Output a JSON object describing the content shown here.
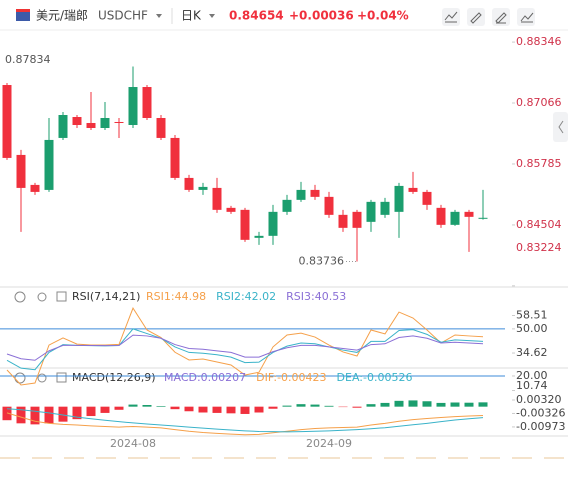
{
  "header": {
    "name": "美元/瑞郎",
    "code": "USDCHF",
    "period": "日K",
    "price": "0.84654",
    "change": "+0.00036",
    "change_pct": "+0.04%"
  },
  "chart_data": [
    {
      "type": "candlestick",
      "categories": [
        null,
        null,
        null,
        null,
        null,
        null,
        null,
        null,
        null,
        "2024-08",
        null,
        null,
        null,
        null,
        null,
        null,
        null,
        null,
        null,
        null,
        null,
        null,
        null,
        "2024-09",
        null,
        null,
        null,
        null,
        null,
        null,
        null,
        null,
        null,
        null,
        null
      ],
      "open": [
        0.87444,
        0.85975,
        0.85345,
        0.8524,
        0.86332,
        0.86772,
        0.86646,
        0.86541,
        0.86667,
        0.86604,
        0.87402,
        0.86751,
        0.86332,
        0.85492,
        0.8524,
        0.85282,
        0.84863,
        0.84821,
        0.84233,
        0.84275,
        0.84779,
        0.85031,
        0.8524,
        0.85094,
        0.84716,
        0.84779,
        0.84569,
        0.84716,
        0.84779,
        0.85282,
        0.85198,
        0.84863,
        0.84506,
        0.84779,
        0.84635
      ],
      "close": [
        0.85912,
        0.85282,
        0.85198,
        0.8629,
        0.86814,
        0.86604,
        0.86541,
        0.86751,
        0.86646,
        0.87402,
        0.86751,
        0.86332,
        0.85492,
        0.8524,
        0.85303,
        0.84821,
        0.84779,
        0.84191,
        0.84275,
        0.84779,
        0.85031,
        0.8524,
        0.85094,
        0.84716,
        0.84443,
        0.84443,
        0.84989,
        0.84989,
        0.85324,
        0.85198,
        0.84926,
        0.84506,
        0.84779,
        0.84674,
        0.84654
      ],
      "high": [
        0.87486,
        0.8608,
        0.85387,
        0.86751,
        0.86877,
        0.86814,
        0.87297,
        0.87087,
        0.86751,
        0.87834,
        0.87444,
        0.86814,
        0.86395,
        0.85555,
        0.85387,
        0.85492,
        0.84905,
        0.84863,
        0.84359,
        0.84926,
        0.85135,
        0.85408,
        0.85345,
        0.85198,
        0.84821,
        0.84821,
        0.85031,
        0.85073,
        0.85387,
        0.85618,
        0.8524,
        0.84926,
        0.84821,
        0.84821,
        0.8524
      ],
      "low": [
        0.8587,
        0.84359,
        0.85135,
        0.85198,
        0.8629,
        0.86541,
        0.86499,
        0.86499,
        0.86332,
        0.86541,
        0.86709,
        0.8629,
        0.8545,
        0.85198,
        0.85135,
        0.84758,
        0.84737,
        0.84149,
        0.84086,
        0.84086,
        0.84716,
        0.84989,
        0.85031,
        0.84653,
        0.84359,
        0.83736,
        0.84359,
        0.84653,
        0.84233,
        0.85156,
        0.84821,
        0.84443,
        0.84485,
        0.83939,
        0.84615
      ],
      "up_color": "#1b9e6e",
      "down_color": "#f0303d",
      "ylim": [
        0.832,
        0.886
      ],
      "yticks": [
        0.88346,
        0.87066,
        0.85785,
        0.84504,
        0.83224
      ],
      "annotations": [
        {
          "text": "0.87834"
        },
        {
          "text": "0.83736"
        }
      ]
    },
    {
      "type": "line",
      "title": "RSI(7,14,21)",
      "ylim": [
        9.8,
        65.2
      ],
      "yticks": [
        58.51,
        {
          "value": 50,
          "label": "50.00"
        },
        34.62,
        {
          "value": 20,
          "label": "20.00"
        },
        10.74
      ],
      "hlines": [
        50,
        20
      ],
      "hline_color": "#3d8bd9",
      "series": [
        {
          "name": "RSI1:44.98",
          "color": "#f5a04a",
          "values": [
            23.8,
            14.3,
            15.5,
            39.7,
            44.2,
            40.3,
            39.7,
            39.7,
            40.1,
            63.2,
            49.3,
            44.5,
            35.1,
            30.2,
            30.8,
            28.9,
            27.0,
            20.6,
            22.4,
            38.5,
            46.1,
            47.3,
            44.8,
            39.7,
            35.3,
            32.7,
            49.3,
            46.8,
            60.7,
            56.9,
            49.3,
            41.0,
            46.1,
            45.5,
            44.98
          ]
        },
        {
          "name": "RSI2:42.02",
          "color": "#3ab3c9",
          "values": [
            30.0,
            25.0,
            24.0,
            35.0,
            40.0,
            39.5,
            39.3,
            39.2,
            39.4,
            50.0,
            47.0,
            44.0,
            38.5,
            35.0,
            34.5,
            33.5,
            32.0,
            28.5,
            28.8,
            35.0,
            39.0,
            41.0,
            40.5,
            38.5,
            36.5,
            35.0,
            42.0,
            42.0,
            49.0,
            49.5,
            46.5,
            41.5,
            43.0,
            42.5,
            42.02
          ]
        },
        {
          "name": "RSI3:40.53",
          "color": "#8a6fd6",
          "values": [
            34.0,
            31.0,
            30.0,
            36.0,
            39.5,
            39.5,
            39.4,
            39.3,
            39.4,
            46.0,
            45.5,
            44.0,
            40.0,
            37.5,
            37.0,
            36.0,
            35.0,
            32.0,
            32.0,
            35.5,
            38.0,
            39.5,
            39.5,
            38.5,
            37.5,
            36.5,
            40.0,
            40.5,
            44.5,
            45.5,
            44.0,
            41.0,
            41.5,
            41.0,
            40.53
          ]
        }
      ]
    },
    {
      "type": "bar",
      "title": "MACD(12,26,9)",
      "ylim": [
        -0.016,
        0.008
      ],
      "yticks": [
        {
          "value": 0.0032,
          "label": "0.00320"
        },
        -0.00326,
        -0.00973
      ],
      "up_color": "#1b9e6e",
      "down_color": "#f0303d",
      "series": [
        {
          "name": "MACD:0.00207",
          "type": "bar",
          "color": "#8a6fd6",
          "values": [
            -0.0065,
            -0.008,
            -0.0085,
            -0.008,
            -0.0072,
            -0.006,
            -0.0045,
            -0.003,
            -0.0015,
            0.001,
            0.0008,
            0.0003,
            -0.0012,
            -0.0022,
            -0.0028,
            -0.003,
            -0.0032,
            -0.0035,
            -0.0028,
            -0.001,
            0.0005,
            0.0012,
            0.001,
            0.0004,
            -0.0002,
            -0.0005,
            0.0012,
            0.0018,
            0.0028,
            0.003,
            0.0026,
            0.0018,
            0.002,
            0.0019,
            0.00207
          ]
        },
        {
          "name": "DIF:-0.00423",
          "type": "line",
          "color": "#f5a04a",
          "values": [
            -0.003,
            -0.005,
            -0.007,
            -0.008,
            -0.0085,
            -0.0088,
            -0.0092,
            -0.0095,
            -0.0098,
            -0.0095,
            -0.0098,
            -0.0102,
            -0.011,
            -0.0118,
            -0.0124,
            -0.0128,
            -0.0132,
            -0.0135,
            -0.0133,
            -0.0125,
            -0.0118,
            -0.011,
            -0.0105,
            -0.0102,
            -0.01,
            -0.0098,
            -0.0088,
            -0.008,
            -0.007,
            -0.0062,
            -0.0057,
            -0.0052,
            -0.0048,
            -0.0045,
            -0.00423
          ]
        },
        {
          "name": "DEA:-0.00526",
          "type": "line",
          "color": "#3ab3c9",
          "values": [
            -0.001,
            -0.0015,
            -0.0022,
            -0.003,
            -0.004,
            -0.005,
            -0.0058,
            -0.0065,
            -0.0072,
            -0.0078,
            -0.0083,
            -0.0088,
            -0.0093,
            -0.0098,
            -0.0103,
            -0.0108,
            -0.0112,
            -0.0116,
            -0.0119,
            -0.012,
            -0.0121,
            -0.012,
            -0.0118,
            -0.0116,
            -0.0113,
            -0.011,
            -0.0106,
            -0.0101,
            -0.0094,
            -0.0087,
            -0.008,
            -0.0072,
            -0.0064,
            -0.0058,
            -0.00526
          ]
        }
      ]
    }
  ]
}
